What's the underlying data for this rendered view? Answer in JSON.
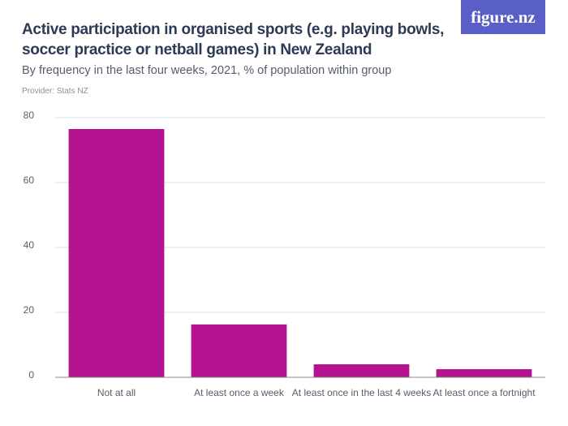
{
  "chart_data": {
    "type": "bar",
    "title": "Active participation in organised sports (e.g. playing bowls, soccer practice or netball games) in New Zealand",
    "subtitle": "By frequency in the last four weeks, 2021, % of population within group",
    "provider": "Provider: Stats NZ",
    "logo": "figure.nz",
    "categories": [
      "Not at all",
      "At least once a week",
      "At least once in the last 4 weeks",
      "At least once a fortnight"
    ],
    "values": [
      76.5,
      16.3,
      4,
      2.5
    ],
    "color": "#b5128f",
    "ylim": [
      0,
      80
    ],
    "yticks": [
      0,
      20,
      40,
      60,
      80
    ],
    "grid": true
  }
}
